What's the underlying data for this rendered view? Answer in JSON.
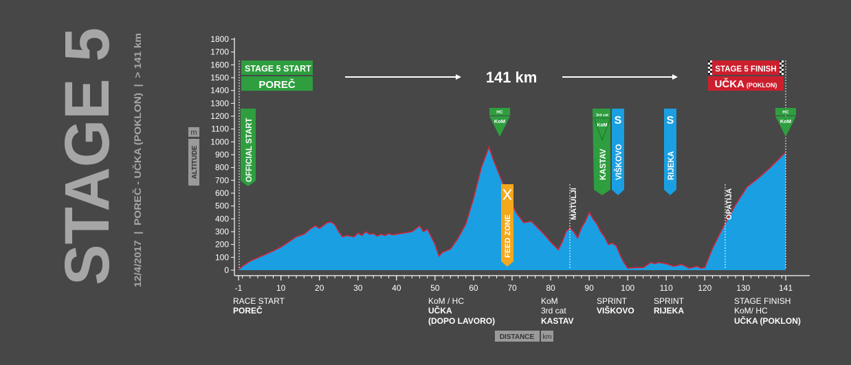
{
  "side_title": {
    "stage": "STAGE 5",
    "subtitle": "12/4/2017  |  POREČ - UČKA (POKLON)  |  > 141 km"
  },
  "colors": {
    "background": "#474747",
    "profile_fill": "#1a9fe3",
    "profile_edge": "#d0243a",
    "green": "#2e9e3f",
    "red": "#cc1f2e",
    "blue": "#1a9fe3",
    "orange": "#f5a81c"
  },
  "axis_labels": {
    "y_unit": "m",
    "y_title": "ALTITUDE",
    "x_title": "DISTANCE",
    "x_unit": "km"
  },
  "header": {
    "start_line1_a": "STAGE 5 ",
    "start_line1_b": "START",
    "start_city": "POREČ",
    "distance": "141 km",
    "finish_line1_a": "STAGE 5 ",
    "finish_line1_b": "FINISH",
    "finish_city": "UČKA",
    "finish_city_suffix": "(POKLON)"
  },
  "markers": {
    "official_start": "OFFICIAL START",
    "kom_hc_tag": "HC",
    "kom_label": "KoM",
    "kom3_tag": "3rd cat",
    "sprint_letter": "S",
    "kastav": "KASTAV",
    "viskovo": "VIŠKOVO",
    "rijeka": "RIJEKA",
    "feed_zone": "FEED ZONE",
    "matulji": "MATULJI",
    "opatija": "OPATIJA"
  },
  "bottom_labels": [
    {
      "line1": "RACE START",
      "line2": "POREČ",
      "line3": "",
      "line4": ""
    },
    {
      "line1": "KoM / HC",
      "line2": "UČKA",
      "line3": "(DOPO LAVORO)",
      "line4": ""
    },
    {
      "line1": "KoM",
      "line2": "3rd cat",
      "line3": "KASTAV",
      "line4": ""
    },
    {
      "line1": "SPRINT",
      "line2": "VIŠKOVO",
      "line3": "",
      "line4": ""
    },
    {
      "line1": "SPRINT",
      "line2": "RIJEKA",
      "line3": "",
      "line4": ""
    },
    {
      "line1": "STAGE FINISH",
      "line2": "KoM/ HC",
      "line3": "UČKA (POKLON)",
      "line4": ""
    }
  ],
  "chart_data": {
    "type": "area",
    "title": "",
    "xlabel": "DISTANCE km",
    "ylabel": "ALTITUDE m",
    "xlim": [
      -1,
      141
    ],
    "ylim": [
      0,
      1800
    ],
    "x_ticks": [
      "-1",
      "10",
      "20",
      "30",
      "40",
      "50",
      "60",
      "70",
      "80",
      "90",
      "100",
      "110",
      "120",
      "130",
      "141"
    ],
    "y_ticks": [
      "0",
      "100",
      "200",
      "300",
      "400",
      "500",
      "600",
      "700",
      "800",
      "900",
      "1000",
      "1100",
      "1200",
      "1300",
      "1400",
      "1500",
      "1600",
      "1700",
      "1800"
    ],
    "grid": false,
    "series": [
      {
        "x": [
          -1,
          0,
          2,
          5,
          8,
          10,
          12,
          14,
          16,
          18,
          19,
          20,
          22,
          23,
          24,
          25,
          26,
          27,
          28,
          29,
          30,
          31,
          32,
          33,
          34,
          35,
          36,
          37,
          38,
          39,
          40,
          42,
          44,
          46,
          47,
          48,
          50,
          51,
          52,
          54,
          56,
          58,
          60,
          62,
          64,
          65,
          67,
          69,
          71,
          73,
          75,
          76,
          78,
          80,
          82,
          83,
          84,
          85,
          86,
          87,
          88,
          89,
          90,
          91,
          92,
          93,
          94,
          95,
          96,
          97,
          98,
          99,
          100,
          102,
          104,
          106,
          107,
          108,
          110,
          112,
          114,
          116,
          118,
          119,
          120,
          122,
          125,
          128,
          131,
          134,
          137,
          139,
          141
        ],
        "y": [
          5,
          30,
          70,
          110,
          150,
          180,
          220,
          260,
          280,
          330,
          345,
          325,
          370,
          375,
          355,
          300,
          260,
          270,
          265,
          260,
          290,
          270,
          300,
          280,
          285,
          265,
          280,
          270,
          285,
          275,
          280,
          290,
          300,
          345,
          300,
          320,
          200,
          110,
          140,
          165,
          250,
          360,
          560,
          800,
          960,
          870,
          720,
          580,
          450,
          370,
          380,
          350,
          290,
          220,
          160,
          220,
          300,
          330,
          300,
          250,
          330,
          380,
          450,
          400,
          360,
          300,
          260,
          200,
          210,
          190,
          120,
          60,
          15,
          20,
          20,
          60,
          50,
          60,
          50,
          30,
          45,
          15,
          30,
          15,
          20,
          170,
          350,
          510,
          650,
          720,
          800,
          860,
          920
        ]
      }
    ]
  }
}
